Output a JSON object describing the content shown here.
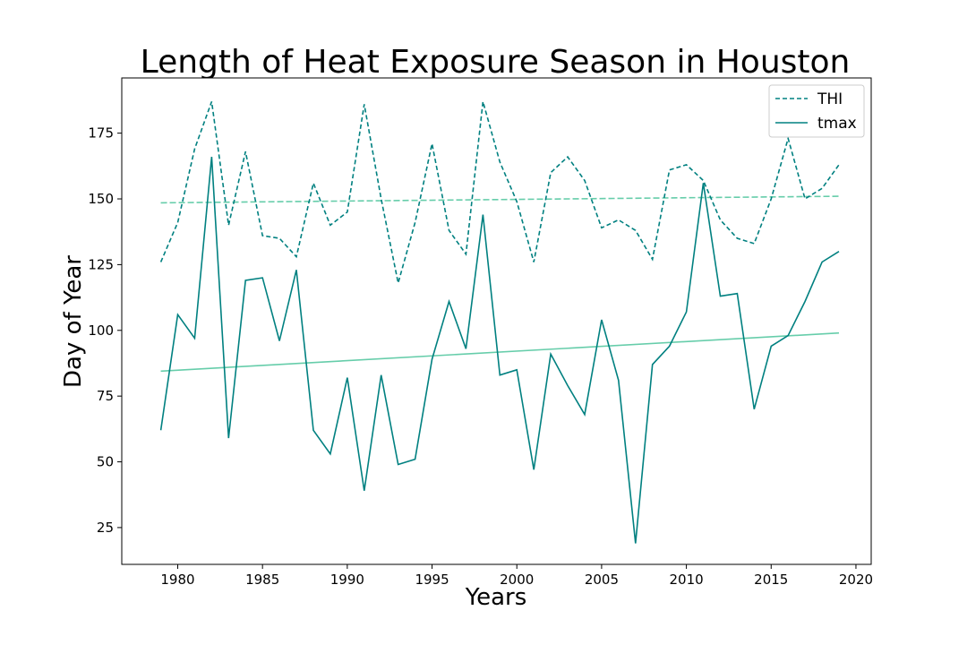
{
  "chart_data": {
    "type": "line",
    "title": "Length of Heat Exposure Season in Houston",
    "xlabel": "Years",
    "ylabel": "Day of Year",
    "xlim": [
      1976.7,
      2020.9
    ],
    "ylim": [
      11,
      196
    ],
    "xticks": [
      1980,
      1985,
      1990,
      1995,
      2000,
      2005,
      2010,
      2015,
      2020
    ],
    "yticks": [
      25,
      50,
      75,
      100,
      125,
      150,
      175
    ],
    "grid": false,
    "legend": "top-right",
    "colors": {
      "series": "#008080",
      "trend": "#66cdaa"
    },
    "x": [
      1979,
      1980,
      1981,
      1982,
      1983,
      1984,
      1985,
      1986,
      1987,
      1988,
      1989,
      1990,
      1991,
      1992,
      1993,
      1994,
      1995,
      1996,
      1997,
      1998,
      1999,
      2000,
      2001,
      2002,
      2003,
      2004,
      2005,
      2006,
      2007,
      2008,
      2009,
      2010,
      2011,
      2012,
      2013,
      2014,
      2015,
      2016,
      2017,
      2018,
      2019
    ],
    "series": [
      {
        "name": "THI",
        "style": "dashed",
        "values": [
          126,
          141,
          169,
          187,
          140,
          168,
          136,
          135,
          128,
          156,
          140,
          145,
          186,
          150,
          118,
          141,
          171,
          138,
          129,
          187,
          164,
          149,
          126,
          160,
          166,
          157,
          139,
          142,
          138,
          127,
          161,
          163,
          157,
          142,
          135,
          133,
          150,
          173,
          150,
          154,
          163
        ]
      },
      {
        "name": "tmax",
        "style": "solid",
        "values": [
          62,
          106,
          97,
          166,
          59,
          119,
          120,
          96,
          123,
          62,
          53,
          82,
          39,
          83,
          49,
          51,
          89,
          111,
          93,
          144,
          83,
          85,
          47,
          91,
          79,
          68,
          104,
          81,
          19,
          87,
          94,
          107,
          156,
          113,
          114,
          70,
          94,
          98,
          111,
          126,
          130
        ]
      }
    ],
    "trendlines": [
      {
        "of": "THI",
        "style": "dashed",
        "x": [
          1979,
          2019
        ],
        "y": [
          148.5,
          151
        ]
      },
      {
        "of": "tmax",
        "style": "solid",
        "x": [
          1979,
          2019
        ],
        "y": [
          84.5,
          99
        ]
      }
    ]
  }
}
